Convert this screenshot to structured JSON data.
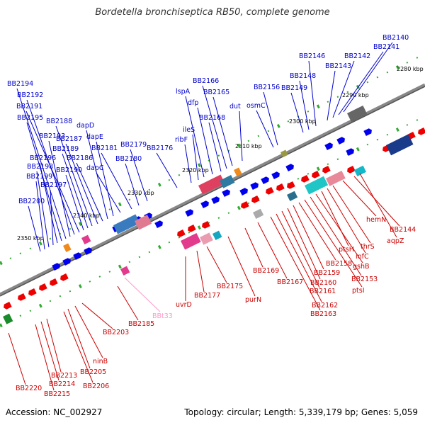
{
  "title": "Bordetella bronchiseptica RB50, complete genome",
  "footer": {
    "accession": "Accession: NC_002927",
    "topology": "Topology: circular; Length: 5,339,179 bp; Genes: 5,059"
  },
  "colors": {
    "top_label": "#0000cc",
    "bottom_label": "#cc0000",
    "pink_label": "#ff99cc",
    "backbone": "#777777",
    "forward_gene": "#0000ee",
    "reverse_gene": "#ee0000",
    "tick_mark": "#33aa33"
  },
  "kbp_ticks": [
    "2280 kbp",
    "2290 kbp",
    "2300 kbp",
    "2310 kbp",
    "2320 kbp",
    "2330 kbp",
    "2340 kbp",
    "2350 kbp"
  ],
  "top_labels": [
    "BB2140",
    "BB2141",
    "BB2142",
    "BB2143",
    "BB2146",
    "BB2148",
    "BB2149",
    "BB2156",
    "osmC",
    "dut",
    "BB2165",
    "BB2166",
    "BB2168",
    "dfp",
    "lspA",
    "ileS",
    "ribF",
    "BB2176",
    "BB2179",
    "BB2180",
    "BB2181",
    "dapC",
    "dapE",
    "dapD",
    "BB2186",
    "BB2187",
    "BB2188",
    "BB2189",
    "BB2190",
    "BB2191",
    "BB2192",
    "BB2193",
    "BB2194",
    "BB2195",
    "BB2196",
    "BB2197",
    "BB2198",
    "BB2199",
    "BB2200"
  ],
  "bottom_labels": [
    "hemN",
    "BB2144",
    "aqpZ",
    "thrS",
    "infC",
    "ptsH",
    "gshB",
    "BB2153",
    "ptsI",
    "BB2158",
    "BB2159",
    "BB2160",
    "BB2161",
    "BB2162",
    "BB2163",
    "BB2167",
    "BB2169",
    "purN",
    "BB2175",
    "BB2177",
    "uvrD",
    "BB2185",
    "BB2203",
    "ninB",
    "BB2205",
    "BB2206",
    "BB2213",
    "BB2214",
    "BB2215",
    "BB2220"
  ],
  "pink_labels": [
    "BBt33"
  ]
}
